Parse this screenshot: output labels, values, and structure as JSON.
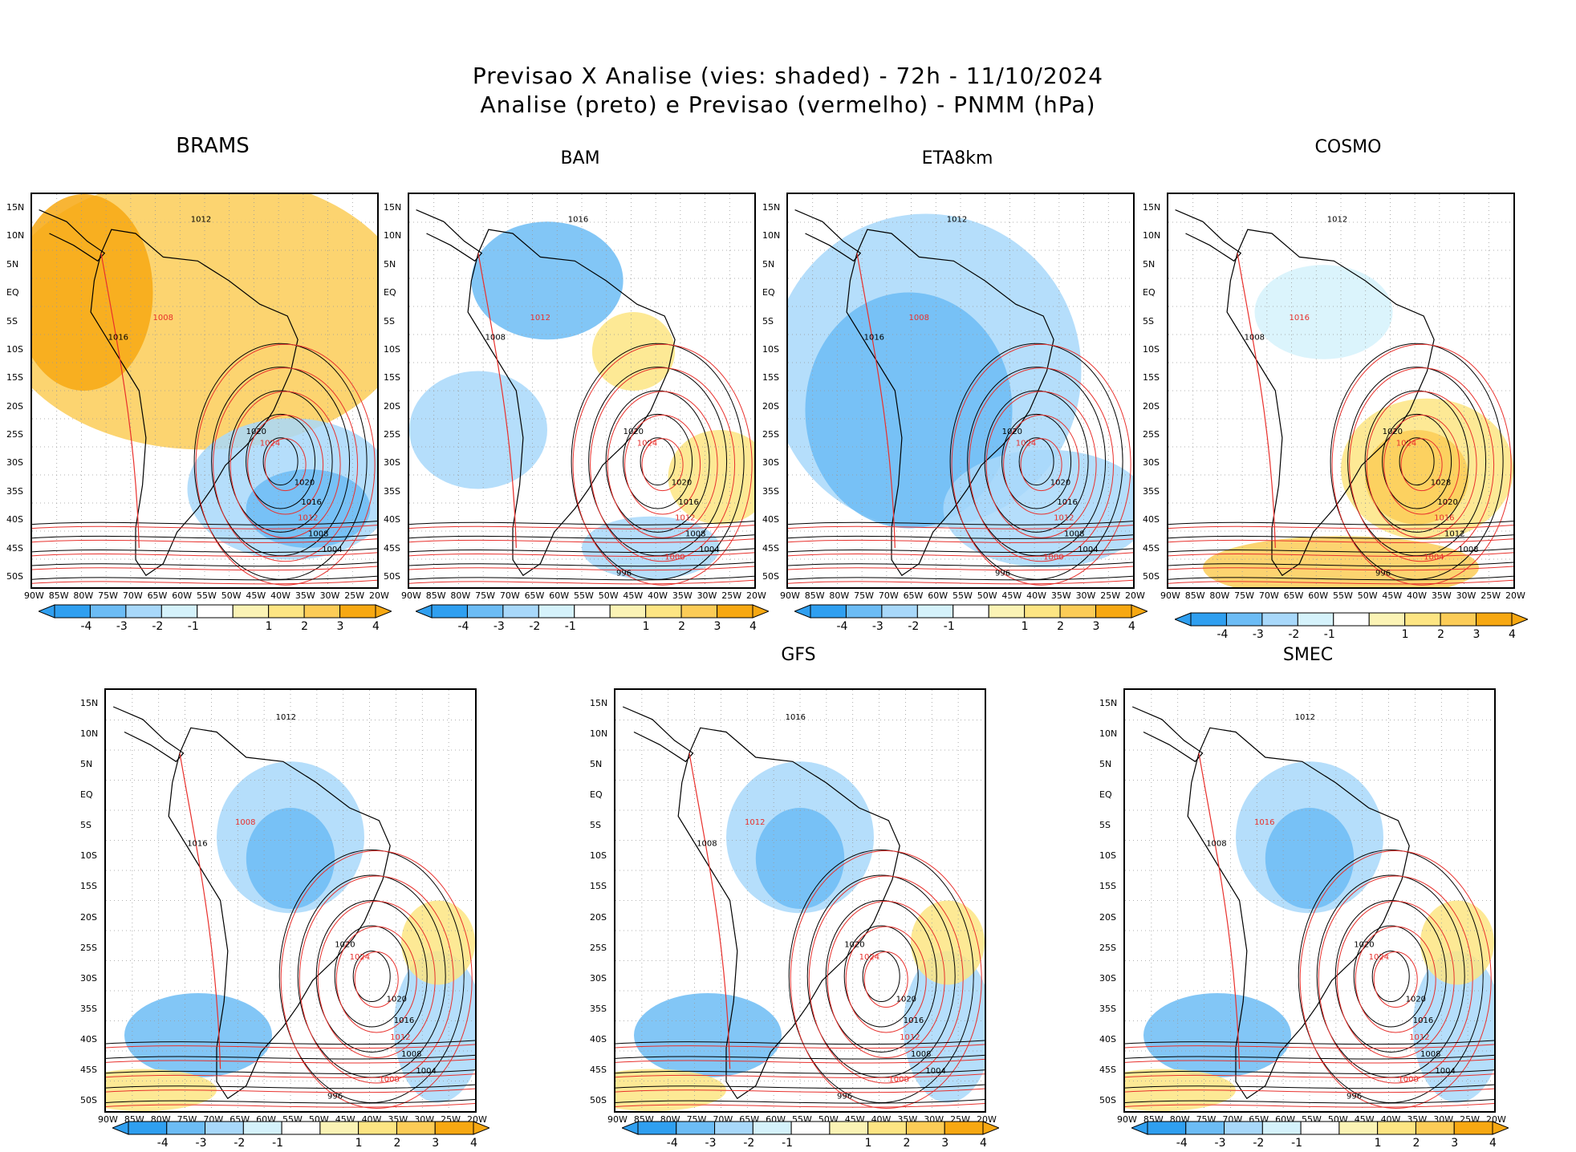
{
  "title_line1": "Previsao X Analise (vies: shaded) - 72h - 11/10/2024",
  "title_line2": "Analise (preto) e Previsao (vermelho) - PNMM (hPa)",
  "colors": {
    "analysis": "#000000",
    "forecast": "#e8302c",
    "bias_neg4": "#2f9ff0",
    "bias_neg3": "#6cbcf5",
    "bias_neg2": "#a8d8fa",
    "bias_neg1": "#d5f2fb",
    "bias_pos1": "#fbf3b5",
    "bias_pos2": "#fde583",
    "bias_pos3": "#fccc57",
    "bias_pos4": "#f7a812"
  },
  "lat_labels": [
    "15N",
    "10N",
    "5N",
    "EQ",
    "5S",
    "10S",
    "15S",
    "20S",
    "25S",
    "30S",
    "35S",
    "40S",
    "45S",
    "50S"
  ],
  "lon_labels": [
    "90W",
    "85W",
    "80W",
    "75W",
    "70W",
    "65W",
    "60W",
    "55W",
    "50W",
    "45W",
    "40W",
    "35W",
    "30W",
    "25W",
    "20W"
  ],
  "colorbar_labels": [
    "-4",
    "-3",
    "-2",
    "-1",
    "1",
    "2",
    "3",
    "4"
  ],
  "panels": [
    {
      "name": "BRAMS",
      "isobars": [
        "1012",
        "1008",
        "1016",
        "1020",
        "1024",
        "1020",
        "1016",
        "1012",
        "1008",
        "1004"
      ]
    },
    {
      "name": "BAM",
      "isobars": [
        "1016",
        "1012",
        "1008",
        "1020",
        "1024",
        "1020",
        "1016",
        "1012",
        "1008",
        "1004",
        "1000",
        "996"
      ]
    },
    {
      "name": "ETA8km",
      "isobars": [
        "1012",
        "1008",
        "1016",
        "1020",
        "1024",
        "1020",
        "1016",
        "1012",
        "1008",
        "1004",
        "1000",
        "996"
      ]
    },
    {
      "name": "COSMO",
      "isobars": [
        "1012",
        "1016",
        "1008",
        "1020",
        "1024",
        "1028",
        "1020",
        "1016",
        "1012",
        "1008",
        "1004",
        "996"
      ]
    },
    {
      "name": "",
      "isobars": [
        "1012",
        "1008",
        "1016",
        "1020",
        "1024",
        "1020",
        "1016",
        "1012",
        "1008",
        "1004",
        "1000",
        "996"
      ]
    },
    {
      "name": "GFS",
      "isobars": [
        "1016",
        "1012",
        "1008",
        "1020",
        "1024",
        "1020",
        "1016",
        "1012",
        "1008",
        "1004",
        "1000",
        "996"
      ]
    },
    {
      "name": "SMEC",
      "isobars": [
        "1012",
        "1016",
        "1008",
        "1020",
        "1024",
        "1020",
        "1016",
        "1012",
        "1008",
        "1004",
        "1000",
        "996"
      ]
    }
  ]
}
